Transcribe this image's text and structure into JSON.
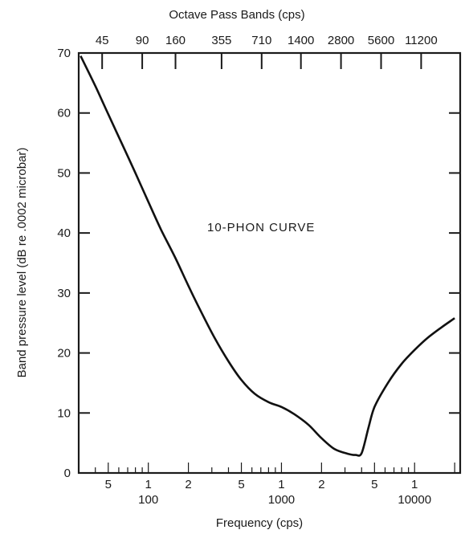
{
  "chart_data": {
    "type": "line",
    "title": "Octave Pass Bands (cps)",
    "xlabel": "Frequency (cps)",
    "ylabel": "Band pressure level (dB re .0002 microbar)",
    "x_scale": "log",
    "xlim": [
      30,
      22000
    ],
    "ylim": [
      0,
      70
    ],
    "grid": false,
    "top_axis": {
      "label": "Octave Pass Bands (cps)",
      "ticks": [
        "45",
        "90",
        "160",
        "355",
        "710",
        "1400",
        "2800",
        "5600",
        "11200"
      ]
    },
    "x_major_ticks": [
      {
        "value": 100,
        "label": "100"
      },
      {
        "value": 1000,
        "label": "1000"
      },
      {
        "value": 10000,
        "label": "10000"
      }
    ],
    "x_minor_labels": [
      {
        "value": 50,
        "label": "5"
      },
      {
        "value": 100,
        "label": "1"
      },
      {
        "value": 200,
        "label": "2"
      },
      {
        "value": 500,
        "label": "5"
      },
      {
        "value": 1000,
        "label": "1"
      },
      {
        "value": 2000,
        "label": "2"
      },
      {
        "value": 5000,
        "label": "5"
      },
      {
        "value": 10000,
        "label": "1"
      }
    ],
    "y_ticks": [
      "0",
      "10",
      "20",
      "30",
      "40",
      "50",
      "60",
      "70"
    ],
    "annotation": "10-PHON CURVE",
    "series": [
      {
        "x": [
          31,
          40,
          50,
          63,
          80,
          100,
          125,
          160,
          200,
          250,
          315,
          400,
          500,
          630,
          800,
          1000,
          1250,
          1600,
          2000,
          2500,
          3150,
          3600,
          4000,
          4500,
          5000,
          6300,
          8000,
          10000,
          12500,
          16000,
          20000
        ],
        "y": [
          69.5,
          64.5,
          59.8,
          55.0,
          50.0,
          45.2,
          40.5,
          35.8,
          31.2,
          26.8,
          22.5,
          18.6,
          15.5,
          13.2,
          11.8,
          11.0,
          9.8,
          8.0,
          5.8,
          4.0,
          3.2,
          3.0,
          3.3,
          7.5,
          11.0,
          15.0,
          18.2,
          20.5,
          22.5,
          24.3,
          25.8
        ]
      }
    ]
  }
}
